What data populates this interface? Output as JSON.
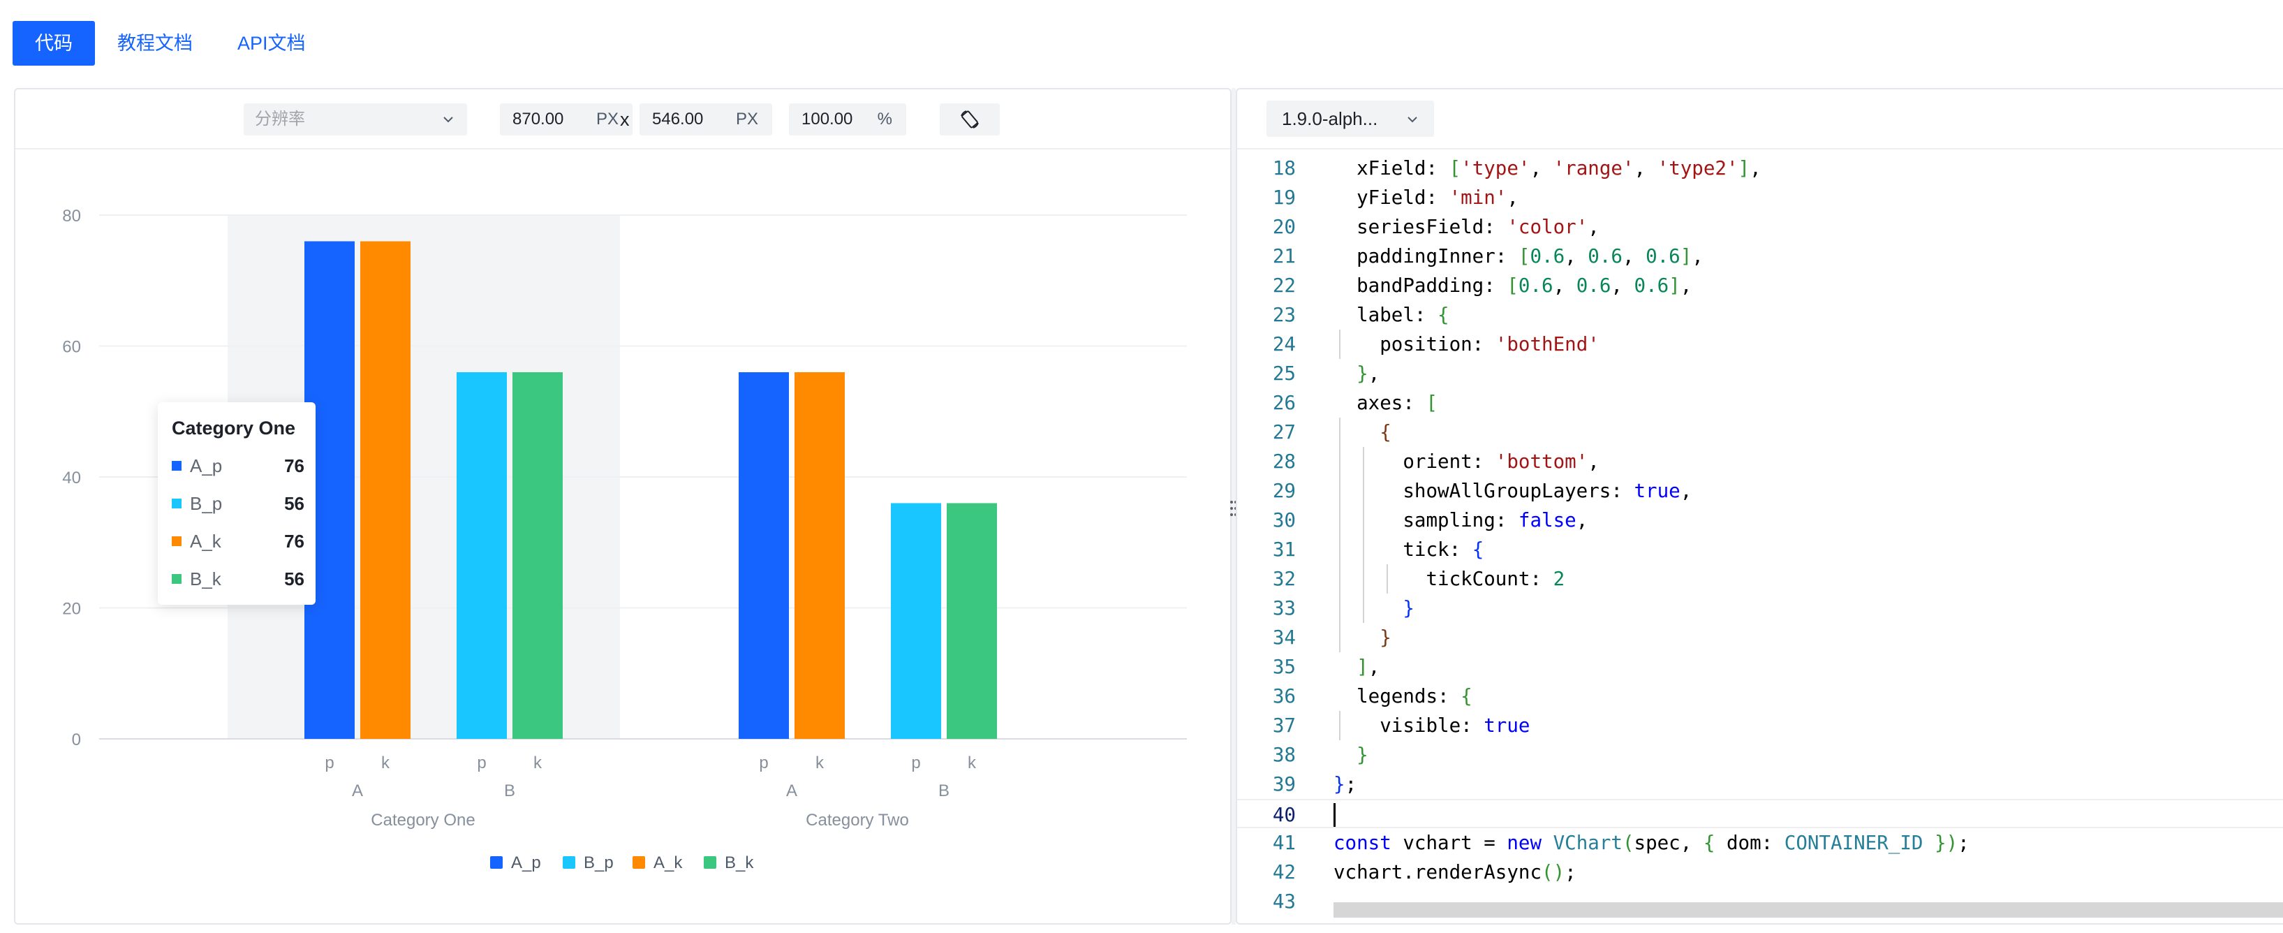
{
  "tabs": [
    {
      "label": "代码",
      "active": true
    },
    {
      "label": "教程文档",
      "active": false
    },
    {
      "label": "API文档",
      "active": false
    }
  ],
  "toolbar": {
    "resolution_placeholder": "分辨率",
    "width_value": "870.00",
    "width_unit": "PX",
    "times": "x",
    "height_value": "546.00",
    "height_unit": "PX",
    "zoom_value": "100.00",
    "zoom_unit": "%",
    "rotate_icon": "rotate-screen-icon"
  },
  "colors": {
    "A_p": "#1664ff",
    "B_p": "#1ac6ff",
    "A_k": "#ff8a00",
    "B_k": "#3cc780",
    "accent": "#1664ff"
  },
  "chart_data": {
    "type": "bar",
    "yticks": [
      "0",
      "20",
      "40",
      "60",
      "80"
    ],
    "ylim": [
      0,
      80
    ],
    "grouped_x": [
      {
        "group": "Category One",
        "ranges": [
          {
            "range": "A",
            "types": [
              {
                "type": "p",
                "value": 76,
                "series": "A_p"
              },
              {
                "type": "k",
                "value": 76,
                "series": "A_k"
              }
            ]
          },
          {
            "range": "B",
            "types": [
              {
                "type": "p",
                "value": 56,
                "series": "B_p"
              },
              {
                "type": "k",
                "value": 56,
                "series": "B_k"
              }
            ]
          }
        ]
      },
      {
        "group": "Category Two",
        "ranges": [
          {
            "range": "A",
            "types": [
              {
                "type": "p",
                "value": 56,
                "series": "A_p"
              },
              {
                "type": "k",
                "value": 56,
                "series": "A_k"
              }
            ]
          },
          {
            "range": "B",
            "types": [
              {
                "type": "p",
                "value": 36,
                "series": "B_p"
              },
              {
                "type": "k",
                "value": 36,
                "series": "B_k"
              }
            ]
          }
        ]
      }
    ],
    "legend": [
      "A_p",
      "B_p",
      "A_k",
      "B_k"
    ],
    "legend_position": "bottom",
    "grid": true,
    "highlighted_group": "Category One"
  },
  "tooltip": {
    "title": "Category One",
    "rows": [
      {
        "name": "A_p",
        "value": "76"
      },
      {
        "name": "B_p",
        "value": "56"
      },
      {
        "name": "A_k",
        "value": "76"
      },
      {
        "name": "B_k",
        "value": "56"
      }
    ]
  },
  "editor": {
    "version": "1.9.0-alph...",
    "current_line": "40",
    "lines": [
      {
        "n": "18",
        "text": "  xField: ['type', 'range', 'type2'],"
      },
      {
        "n": "19",
        "text": "  yField: 'min',"
      },
      {
        "n": "20",
        "text": "  seriesField: 'color',"
      },
      {
        "n": "21",
        "text": "  paddingInner: [0.6, 0.6, 0.6],"
      },
      {
        "n": "22",
        "text": "  bandPadding: [0.6, 0.6, 0.6],"
      },
      {
        "n": "23",
        "text": "  label: {"
      },
      {
        "n": "24",
        "text": "    position: 'bothEnd'"
      },
      {
        "n": "25",
        "text": "  },"
      },
      {
        "n": "26",
        "text": "  axes: ["
      },
      {
        "n": "27",
        "text": "    {"
      },
      {
        "n": "28",
        "text": "      orient: 'bottom',"
      },
      {
        "n": "29",
        "text": "      showAllGroupLayers: true,"
      },
      {
        "n": "30",
        "text": "      sampling: false,"
      },
      {
        "n": "31",
        "text": "      tick: {"
      },
      {
        "n": "32",
        "text": "        tickCount: 2"
      },
      {
        "n": "33",
        "text": "      }"
      },
      {
        "n": "34",
        "text": "    }"
      },
      {
        "n": "35",
        "text": "  ],"
      },
      {
        "n": "36",
        "text": "  legends: {"
      },
      {
        "n": "37",
        "text": "    visible: true"
      },
      {
        "n": "38",
        "text": "  }"
      },
      {
        "n": "39",
        "text": "};"
      },
      {
        "n": "40",
        "text": ""
      },
      {
        "n": "41",
        "text": "const vchart = new VChart(spec, { dom: CONTAINER_ID });"
      },
      {
        "n": "42",
        "text": "vchart.renderAsync();"
      },
      {
        "n": "43",
        "text": ""
      }
    ]
  }
}
